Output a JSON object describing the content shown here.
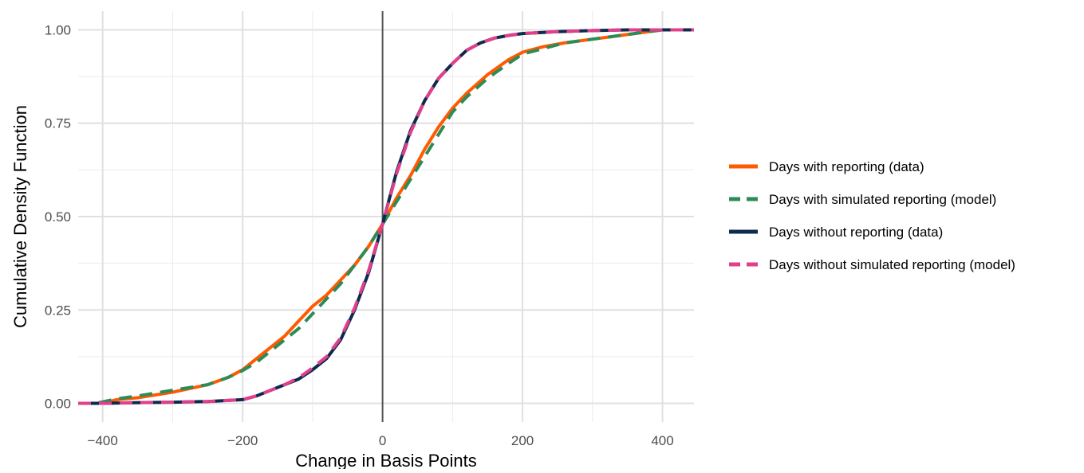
{
  "chart_data": {
    "type": "line",
    "title": "",
    "xlabel": "Change in Basis Points",
    "ylabel": "Cumulative Density Function",
    "xlim": [
      -435,
      445
    ],
    "ylim": [
      -0.05,
      1.05
    ],
    "xticks": [
      -400,
      -200,
      0,
      200,
      400
    ],
    "xtick_labels": [
      "−400",
      "−200",
      "0",
      "200",
      "400"
    ],
    "yticks": [
      0,
      0.25,
      0.5,
      0.75,
      1
    ],
    "ytick_labels": [
      "0.00",
      "0.25",
      "0.50",
      "0.75",
      "1.00"
    ],
    "x_minor_gridlines": [
      -300,
      -100,
      100,
      300
    ],
    "y_minor_gridlines": [
      0.125,
      0.375,
      0.625,
      0.875
    ],
    "grid": true,
    "vertical_reference_line": 0,
    "legend_position": "right",
    "series": [
      {
        "name": "Days with reporting (data)",
        "color": "#FF5A00",
        "dash": "solid",
        "x": [
          -435,
          -400,
          -380,
          -350,
          -300,
          -250,
          -220,
          -200,
          -180,
          -160,
          -140,
          -120,
          -100,
          -80,
          -60,
          -40,
          -20,
          0,
          20,
          40,
          60,
          80,
          100,
          120,
          150,
          180,
          200,
          230,
          260,
          300,
          340,
          380,
          400,
          445
        ],
        "y": [
          0,
          0,
          0.01,
          0.015,
          0.03,
          0.05,
          0.07,
          0.09,
          0.12,
          0.15,
          0.18,
          0.22,
          0.26,
          0.29,
          0.33,
          0.37,
          0.42,
          0.48,
          0.55,
          0.61,
          0.68,
          0.74,
          0.79,
          0.83,
          0.88,
          0.92,
          0.94,
          0.955,
          0.965,
          0.975,
          0.985,
          0.995,
          1,
          1
        ]
      },
      {
        "name": "Days with simulated reporting (model)",
        "color": "#2E8B57",
        "dash": "dashed",
        "x": [
          -435,
          -410,
          -380,
          -350,
          -300,
          -250,
          -220,
          -200,
          -180,
          -160,
          -140,
          -120,
          -100,
          -80,
          -60,
          -40,
          -20,
          0,
          20,
          40,
          60,
          80,
          100,
          120,
          150,
          180,
          200,
          230,
          260,
          300,
          340,
          380,
          400,
          445
        ],
        "y": [
          0,
          0,
          0.012,
          0.02,
          0.035,
          0.05,
          0.07,
          0.088,
          0.11,
          0.14,
          0.17,
          0.2,
          0.24,
          0.28,
          0.32,
          0.37,
          0.42,
          0.48,
          0.54,
          0.6,
          0.66,
          0.72,
          0.78,
          0.82,
          0.87,
          0.91,
          0.935,
          0.95,
          0.965,
          0.975,
          0.985,
          0.995,
          1,
          1
        ]
      },
      {
        "name": "Days without reporting (data)",
        "color": "#0D2A4F",
        "dash": "solid",
        "x": [
          -435,
          -400,
          -350,
          -300,
          -250,
          -200,
          -180,
          -160,
          -140,
          -120,
          -100,
          -80,
          -60,
          -40,
          -20,
          0,
          20,
          40,
          60,
          80,
          100,
          120,
          140,
          160,
          180,
          200,
          250,
          300,
          350,
          400,
          445
        ],
        "y": [
          0,
          0,
          0.002,
          0.003,
          0.005,
          0.01,
          0.02,
          0.035,
          0.05,
          0.065,
          0.09,
          0.12,
          0.17,
          0.25,
          0.35,
          0.48,
          0.62,
          0.73,
          0.81,
          0.87,
          0.91,
          0.945,
          0.965,
          0.978,
          0.985,
          0.99,
          0.995,
          0.998,
          1,
          1,
          1
        ]
      },
      {
        "name": "Days without simulated reporting (model)",
        "color": "#E0408A",
        "dash": "dashed",
        "x": [
          -435,
          -400,
          -350,
          -300,
          -250,
          -200,
          -180,
          -160,
          -140,
          -120,
          -100,
          -80,
          -60,
          -40,
          -20,
          0,
          20,
          40,
          60,
          80,
          100,
          120,
          140,
          160,
          180,
          200,
          250,
          300,
          350,
          400,
          445
        ],
        "y": [
          0,
          0,
          0.002,
          0.003,
          0.005,
          0.01,
          0.02,
          0.035,
          0.05,
          0.068,
          0.095,
          0.125,
          0.175,
          0.255,
          0.355,
          0.48,
          0.615,
          0.725,
          0.81,
          0.87,
          0.91,
          0.945,
          0.965,
          0.978,
          0.985,
          0.99,
          0.995,
          0.998,
          1,
          1,
          1
        ]
      }
    ]
  }
}
